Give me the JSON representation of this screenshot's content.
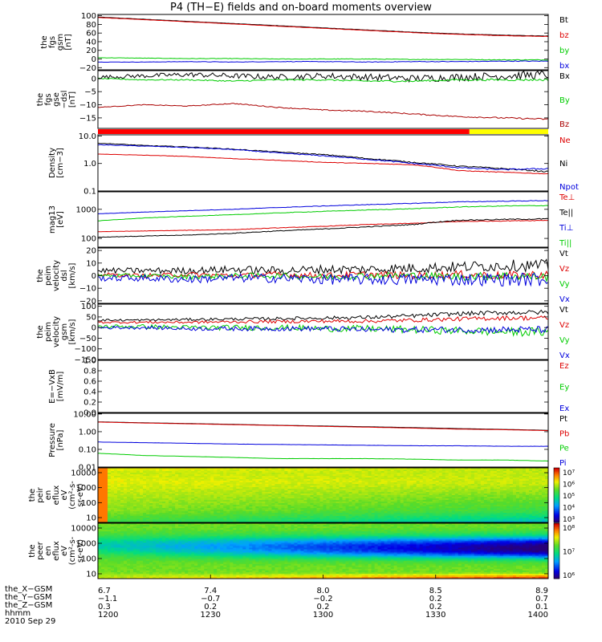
{
  "title": "P4 (TH−E) fields and on-board moments overview",
  "date_label": "2010 Sep 29",
  "chart_data": [
    {
      "type": "line",
      "ylabel": [
        "the",
        "fgs",
        "gsm",
        "[nT]"
      ],
      "yticks": [
        "100",
        "80",
        "60",
        "40",
        "20",
        "0",
        "−20"
      ],
      "ylim": [
        -25,
        103
      ],
      "grid": false,
      "series": [
        {
          "name": "Bt",
          "color": "#000000",
          "values": [
            97,
            92,
            87,
            82,
            77,
            72,
            67,
            62,
            58,
            55,
            53
          ],
          "noise": 0.3
        },
        {
          "name": "bz",
          "color": "#dd0000",
          "values": [
            96,
            91,
            86,
            81,
            76,
            71,
            66,
            61,
            57,
            54,
            52
          ],
          "noise": 0.3
        },
        {
          "name": "by",
          "color": "#00cc00",
          "values": [
            3,
            2,
            1,
            1,
            0,
            0,
            0,
            -1,
            -1,
            -2,
            -2
          ],
          "noise": 0.6
        },
        {
          "name": "bx",
          "color": "#0000dd",
          "values": [
            -7,
            -7,
            -6,
            -7,
            -6,
            -6,
            -7,
            -6,
            -6,
            -5,
            -5
          ],
          "noise": 0.6
        }
      ],
      "legend_placement": "right"
    },
    {
      "type": "line",
      "ylabel": [
        "the",
        "fgs",
        "gse",
        "−dsl",
        "[nT]"
      ],
      "yticks": [
        "0",
        "−5",
        "−10",
        "−15"
      ],
      "ylim": [
        -19,
        3
      ],
      "grid": false,
      "series": [
        {
          "name": "Bx",
          "color": "#000000",
          "values": [
            0.5,
            1,
            1.5,
            1,
            0.5,
            1,
            0.5,
            0,
            0.5,
            1,
            1.5
          ],
          "noise": 1.2
        },
        {
          "name": "By",
          "color": "#00cc00",
          "values": [
            0,
            -0.5,
            -0.5,
            -1,
            -0.5,
            -0.5,
            -1,
            -1,
            -0.5,
            -0.5,
            -0.5
          ],
          "noise": 0.3
        },
        {
          "name": "Bz",
          "color": "#aa0000",
          "values": [
            -11,
            -10,
            -10.5,
            -9.5,
            -11,
            -12,
            -12.5,
            -13.5,
            -14.5,
            -15,
            -15.5
          ],
          "noise": 0.2
        }
      ],
      "legend_placement": "right"
    },
    {
      "type": "line",
      "ylabel": [
        "Density",
        "[cm−3]"
      ],
      "yticks": [
        "10.0",
        "1.0",
        "0.1"
      ],
      "log": true,
      "ylim": [
        0.1,
        11
      ],
      "grid": false,
      "series": [
        {
          "name": "Ne",
          "color": "#dd0000",
          "values": [
            2.2,
            2.0,
            1.8,
            1.5,
            1.3,
            1.1,
            1.0,
            0.9,
            0.55,
            0.48,
            0.42
          ],
          "noise": 0.02
        },
        {
          "name": "Ni",
          "color": "#000000",
          "values": [
            5.5,
            4.5,
            4.0,
            3.3,
            2.6,
            2.1,
            1.5,
            1.1,
            0.8,
            0.65,
            0.5
          ],
          "noise": 0.04
        },
        {
          "name": "Npot",
          "color": "#0000dd",
          "values": [
            4.8,
            4.3,
            3.8,
            3.2,
            2.4,
            1.9,
            1.4,
            1.0,
            0.7,
            0.6,
            0.65
          ],
          "noise": 0.04
        }
      ],
      "legend_placement": "right"
    },
    {
      "type": "line",
      "ylabel": [
        "mag13",
        "[eV]"
      ],
      "yticks": [
        "1000",
        "100"
      ],
      "log": true,
      "ylim": [
        50,
        4000
      ],
      "grid": false,
      "series": [
        {
          "name": "Te⊥",
          "color": "#dd0000",
          "values": [
            170,
            180,
            190,
            200,
            230,
            260,
            300,
            330,
            380,
            400,
            420
          ],
          "noise": 0.02
        },
        {
          "name": "Te||",
          "color": "#000000",
          "values": [
            110,
            120,
            130,
            150,
            180,
            210,
            250,
            300,
            420,
            450,
            470
          ],
          "noise": 0.03
        },
        {
          "name": "Ti⊥",
          "color": "#0000dd",
          "values": [
            700,
            800,
            900,
            1000,
            1150,
            1300,
            1450,
            1600,
            1800,
            1900,
            2000
          ],
          "noise": 0.02
        },
        {
          "name": "Ti||",
          "color": "#00cc00",
          "values": [
            400,
            500,
            580,
            650,
            750,
            850,
            950,
            1050,
            1200,
            1300,
            1350
          ],
          "noise": 0.02
        }
      ],
      "legend_placement": "right"
    },
    {
      "type": "line",
      "ylabel": [
        "the",
        "peim",
        "velocity",
        "dsl",
        "[km/s]"
      ],
      "yticks": [
        "20",
        "10",
        "0",
        "−10",
        "−20"
      ],
      "ylim": [
        -22,
        22
      ],
      "grid": false,
      "series": [
        {
          "name": "Vt",
          "color": "#000000",
          "values": [
            4,
            4,
            4,
            5,
            4,
            5,
            5,
            6,
            7,
            8,
            8
          ],
          "noise": 3.5
        },
        {
          "name": "Vz",
          "color": "#dd0000",
          "values": [
            1,
            0,
            1,
            0,
            1,
            0,
            1,
            0,
            1,
            0,
            1
          ],
          "noise": 2.5
        },
        {
          "name": "Vy",
          "color": "#00cc00",
          "values": [
            0,
            0,
            -1,
            0,
            0,
            -1,
            0,
            0,
            -1,
            0,
            -1
          ],
          "noise": 2.5
        },
        {
          "name": "Vx",
          "color": "#0000dd",
          "values": [
            -2,
            -2,
            -3,
            -2,
            -2,
            -3,
            -3,
            -3,
            -3,
            -3,
            -3
          ],
          "noise": 4
        }
      ],
      "legend_placement": "right"
    },
    {
      "type": "line",
      "ylabel": [
        "the",
        "peim",
        "velocity",
        "gsm",
        "[km/s]"
      ],
      "yticks": [
        "100",
        "50",
        "0",
        "−50",
        "−100",
        "−150"
      ],
      "ylim": [
        -150,
        110
      ],
      "grid": false,
      "series": [
        {
          "name": "Vt",
          "color": "#000000",
          "values": [
            35,
            35,
            38,
            40,
            42,
            45,
            48,
            55,
            65,
            70,
            72
          ],
          "noise": 8
        },
        {
          "name": "Vz",
          "color": "#dd0000",
          "values": [
            25,
            25,
            25,
            27,
            28,
            30,
            30,
            35,
            40,
            45,
            45
          ],
          "noise": 8
        },
        {
          "name": "Vy",
          "color": "#00cc00",
          "values": [
            5,
            5,
            0,
            0,
            0,
            -5,
            -5,
            -10,
            -15,
            -20,
            -20
          ],
          "noise": 15
        },
        {
          "name": "Vx",
          "color": "#0000dd",
          "values": [
            0,
            0,
            -5,
            -5,
            -5,
            -5,
            -10,
            -10,
            -10,
            -10,
            -10
          ],
          "noise": 12
        }
      ],
      "legend_placement": "right"
    },
    {
      "type": "line",
      "ylabel": [
        "E=−VxB",
        "[mV/m]"
      ],
      "yticks": [
        "1.0",
        "0.8",
        "0.6",
        "0.4",
        "0.2",
        "0.0"
      ],
      "ylim": [
        0,
        1
      ],
      "grid": false,
      "series": [
        {
          "name": "Ez",
          "color": "#dd0000",
          "values": []
        },
        {
          "name": "Ey",
          "color": "#00cc00",
          "values": []
        },
        {
          "name": "Ex",
          "color": "#0000dd",
          "values": []
        }
      ],
      "legend_placement": "right"
    },
    {
      "type": "line",
      "ylabel": [
        "Pressure",
        "[nPa]"
      ],
      "yticks": [
        "10.00",
        "1.00",
        "0.10",
        "0.01"
      ],
      "log": true,
      "ylim": [
        0.01,
        11
      ],
      "grid": false,
      "series": [
        {
          "name": "Pt",
          "color": "#000000",
          "values": [
            3.6,
            3.2,
            2.9,
            2.6,
            2.3,
            2.1,
            1.9,
            1.7,
            1.5,
            1.35,
            1.2
          ],
          "noise": 0
        },
        {
          "name": "Pb",
          "color": "#dd0000",
          "values": [
            3.5,
            3.1,
            2.8,
            2.5,
            2.25,
            2.0,
            1.8,
            1.6,
            1.4,
            1.3,
            1.15
          ],
          "noise": 0
        },
        {
          "name": "Pe",
          "color": "#00cc00",
          "values": [
            0.06,
            0.045,
            0.04,
            0.035,
            0.03,
            0.03,
            0.03,
            0.028,
            0.025,
            0.025,
            0.022
          ],
          "noise": 0.01
        },
        {
          "name": "Pi",
          "color": "#0000dd",
          "values": [
            0.26,
            0.24,
            0.22,
            0.2,
            0.19,
            0.18,
            0.17,
            0.16,
            0.16,
            0.15,
            0.15
          ],
          "noise": 0.01
        }
      ],
      "legend_placement": "right"
    },
    {
      "type": "heatmap",
      "ylabel": [
        "the",
        "peir",
        "en",
        "eflux",
        "eV",
        "(cm²-s-",
        "sr-eV)"
      ],
      "yticks": [
        "10000",
        "1000",
        "100",
        "10"
      ],
      "log": true,
      "ylim": [
        7,
        25000
      ],
      "colorbar_ticks": [
        "10⁷",
        "10⁶",
        "10⁵",
        "10⁴",
        "10³"
      ],
      "colorbar_range_log": [
        3,
        7
      ]
    },
    {
      "type": "heatmap",
      "ylabel": [
        "the",
        "peer",
        "en",
        "eflux",
        "eV",
        "(cm²-s-",
        "sr-eV)"
      ],
      "yticks": [
        "10000",
        "1000",
        "100",
        "10"
      ],
      "log": true,
      "ylim": [
        7,
        25000
      ],
      "colorbar_ticks": [
        "10⁸",
        "10⁷",
        "10⁶"
      ],
      "colorbar_range_log": [
        5.5,
        8
      ]
    }
  ],
  "time_axis": {
    "rows": [
      {
        "label": "the_X−GSM",
        "values": [
          "6.7",
          "7.4",
          "8.0",
          "8.5",
          "8.9"
        ]
      },
      {
        "label": "the_Y−GSM",
        "values": [
          "−1.1",
          "−0.7",
          "−0.2",
          "0.2",
          "0.7"
        ]
      },
      {
        "label": "the_Z−GSM",
        "values": [
          "0.3",
          "0.2",
          "0.2",
          "0.2",
          "0.1"
        ]
      },
      {
        "label": "hhmm",
        "values": [
          "1200",
          "1230",
          "1300",
          "1330",
          "1400"
        ]
      }
    ]
  }
}
